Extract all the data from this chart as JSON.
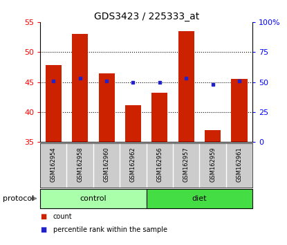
{
  "title": "GDS3423 / 225333_at",
  "samples": [
    "GSM162954",
    "GSM162958",
    "GSM162960",
    "GSM162962",
    "GSM162956",
    "GSM162957",
    "GSM162959",
    "GSM162961"
  ],
  "bar_values": [
    47.8,
    53.0,
    46.5,
    41.2,
    43.2,
    53.5,
    37.0,
    45.5
  ],
  "percentile_right": [
    51,
    53,
    51,
    50,
    50,
    53,
    48,
    51
  ],
  "bar_color": "#cc2200",
  "dot_color": "#2222cc",
  "bar_bottom": 35,
  "ylim_left": [
    35,
    55
  ],
  "ylim_right": [
    0,
    100
  ],
  "yticks_left": [
    35,
    40,
    45,
    50,
    55
  ],
  "yticks_right": [
    0,
    25,
    50,
    75,
    100
  ],
  "ytick_labels_right": [
    "0",
    "25",
    "50",
    "75",
    "100%"
  ],
  "n_control": 4,
  "n_diet": 4,
  "control_color": "#aaffaa",
  "diet_color": "#44dd44",
  "label_area_color": "#cccccc",
  "protocol_label": "protocol",
  "control_label": "control",
  "diet_label": "diet",
  "legend_count_label": "count",
  "legend_pct_label": "percentile rank within the sample",
  "grid_yticks": [
    40,
    45,
    50
  ]
}
